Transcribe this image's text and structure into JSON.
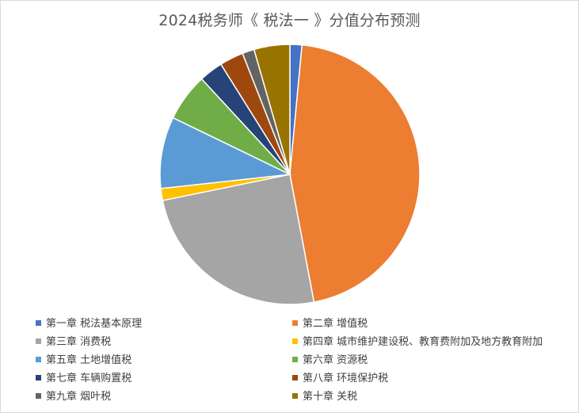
{
  "title": "2024税务师《 税法一 》分值分布预测",
  "chart_data": {
    "type": "pie",
    "title": "2024税务师《 税法一 》分值分布预测",
    "legend_position": "bottom",
    "categories": [
      "第一章  税法基本原理",
      "第二章  增值税",
      "第三章  消费税",
      "第四章  城市维护建设税、教育费附加及地方教育附加",
      "第五章  土地增值税",
      "第六章  资源税",
      "第七章  车辆购置税",
      "第八章  环境保护税",
      "第九章  烟叶税",
      "第十章  关税"
    ],
    "values": [
      1.5,
      46,
      25,
      1.5,
      9,
      6,
      3,
      3,
      1.5,
      4.5
    ],
    "colors": [
      "#4472c4",
      "#ed7d31",
      "#a5a5a5",
      "#ffc000",
      "#5b9bd5",
      "#70ad47",
      "#264478",
      "#9e480e",
      "#636363",
      "#997300"
    ]
  }
}
